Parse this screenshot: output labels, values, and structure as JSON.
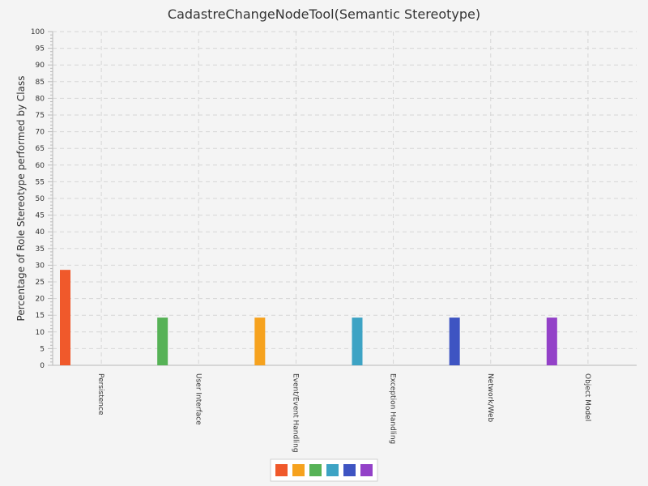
{
  "chart_data": {
    "type": "bar",
    "title": "CadastreChangeNodeTool(Semantic Stereotype)",
    "xlabel": "",
    "ylabel": "Percentage of Role Stereotype performed by Class",
    "ylim": [
      0,
      100
    ],
    "y_tick_step": 5,
    "grid": true,
    "legend": "bottom",
    "categories": [
      "Persistence",
      "User Interface",
      "Event/Event Handling",
      "Exception Handling",
      "Network/Web",
      "Object Model"
    ],
    "values": [
      28.6,
      14.3,
      14.3,
      14.3,
      14.3,
      14.3
    ],
    "colors": [
      "#f0592b",
      "#f6a21e",
      "#56b256",
      "#3da3c4",
      "#3e54c2",
      "#9341c8"
    ],
    "bar_colors": [
      "#f0592b",
      "#56b256",
      "#f6a21e",
      "#3da3c4",
      "#3e54c2",
      "#9341c8"
    ]
  }
}
